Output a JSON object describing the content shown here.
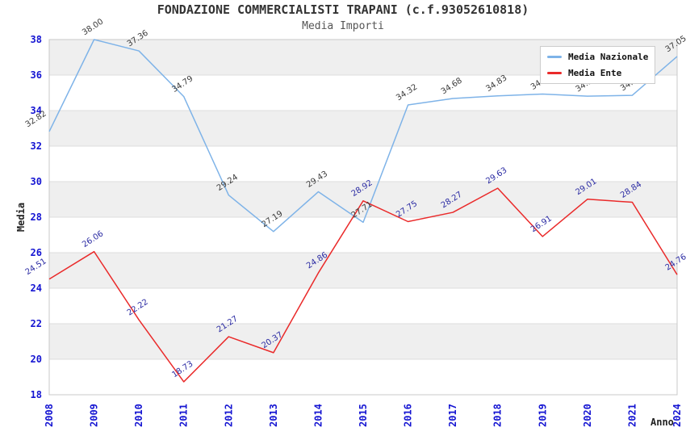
{
  "chart_data": {
    "type": "line",
    "title": "FONDAZIONE COMMERCIALISTI TRAPANI (c.f.93052610818)",
    "subtitle": "Media Importi",
    "xlabel": "Anno",
    "ylabel": "Media",
    "categories": [
      "2008",
      "2009",
      "2010",
      "2011",
      "2012",
      "2013",
      "2014",
      "2015",
      "2016",
      "2017",
      "2018",
      "2019",
      "2020",
      "2021",
      "2024"
    ],
    "series": [
      {
        "name": "Media Nazionale",
        "color": "#7eb3e8",
        "label_color": "#3b3b3b",
        "values": [
          32.82,
          38.0,
          37.36,
          34.79,
          29.24,
          27.19,
          29.43,
          27.71,
          34.32,
          34.68,
          34.83,
          34.93,
          34.81,
          34.86,
          37.05
        ]
      },
      {
        "name": "Media Ente",
        "color": "#ea2a2a",
        "label_color": "#2b2ba3",
        "values": [
          24.51,
          26.06,
          22.22,
          18.73,
          21.27,
          20.37,
          24.86,
          28.92,
          27.75,
          28.27,
          29.63,
          26.91,
          29.01,
          28.84,
          24.76
        ]
      }
    ],
    "ylim": [
      18,
      38
    ],
    "y_ticks": [
      18,
      20,
      22,
      24,
      26,
      28,
      30,
      32,
      34,
      36,
      38
    ],
    "grid": "horizontal-bands",
    "legend_position": "top-right",
    "labels_hidden_by_legend": [
      "2019",
      "2020",
      "2021"
    ]
  },
  "colors": {
    "band": "#efefef",
    "grid": "#dcdcdc",
    "border": "#c9c9c9",
    "tick_blue": "#1414d2",
    "axis_title": "#222222",
    "title": "#333333",
    "subtitle": "#555555"
  }
}
